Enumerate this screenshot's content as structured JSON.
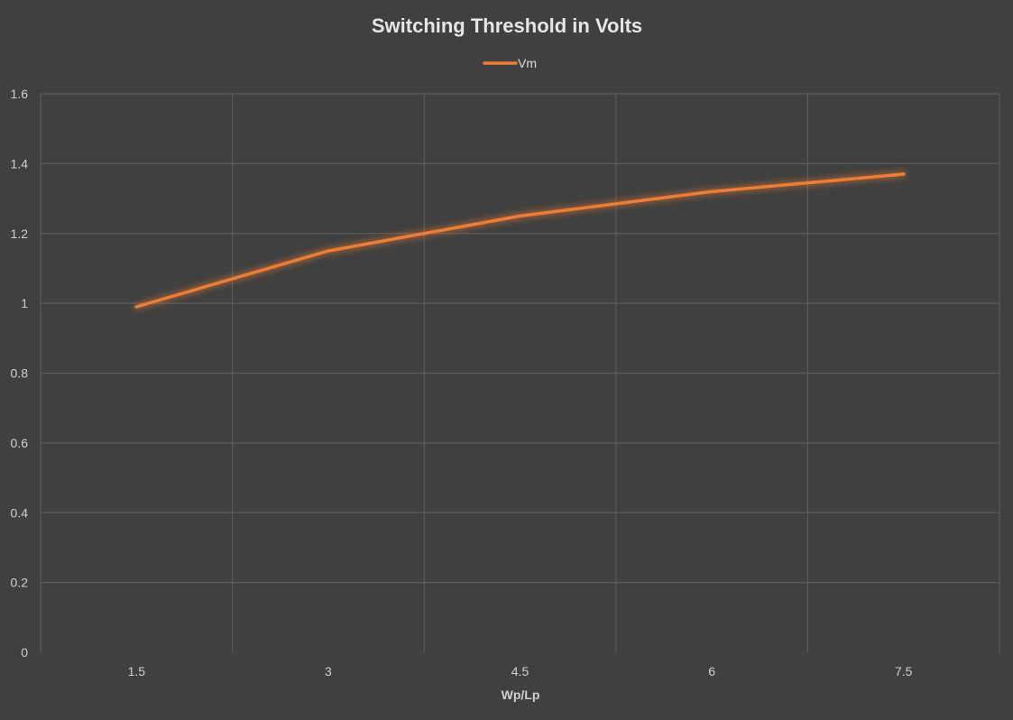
{
  "chart_data": {
    "type": "line",
    "title": "Switching Threshold in Volts",
    "xlabel": "Wp/Lp",
    "ylabel": "",
    "categories": [
      "1.5",
      "3",
      "4.5",
      "6",
      "7.5"
    ],
    "ylim": [
      0,
      1.6
    ],
    "yticks": [
      "0",
      "0.2",
      "0.4",
      "0.6",
      "0.8",
      "1",
      "1.2",
      "1.4",
      "1.6"
    ],
    "grid": true,
    "legend_position": "top",
    "series": [
      {
        "name": "Vm",
        "color": "#ed7d31",
        "values": [
          0.99,
          1.15,
          1.25,
          1.32,
          1.37
        ]
      }
    ]
  },
  "colors": {
    "background": "#404040",
    "grid": "#5b5b5b",
    "text": "#d0d0d0"
  }
}
